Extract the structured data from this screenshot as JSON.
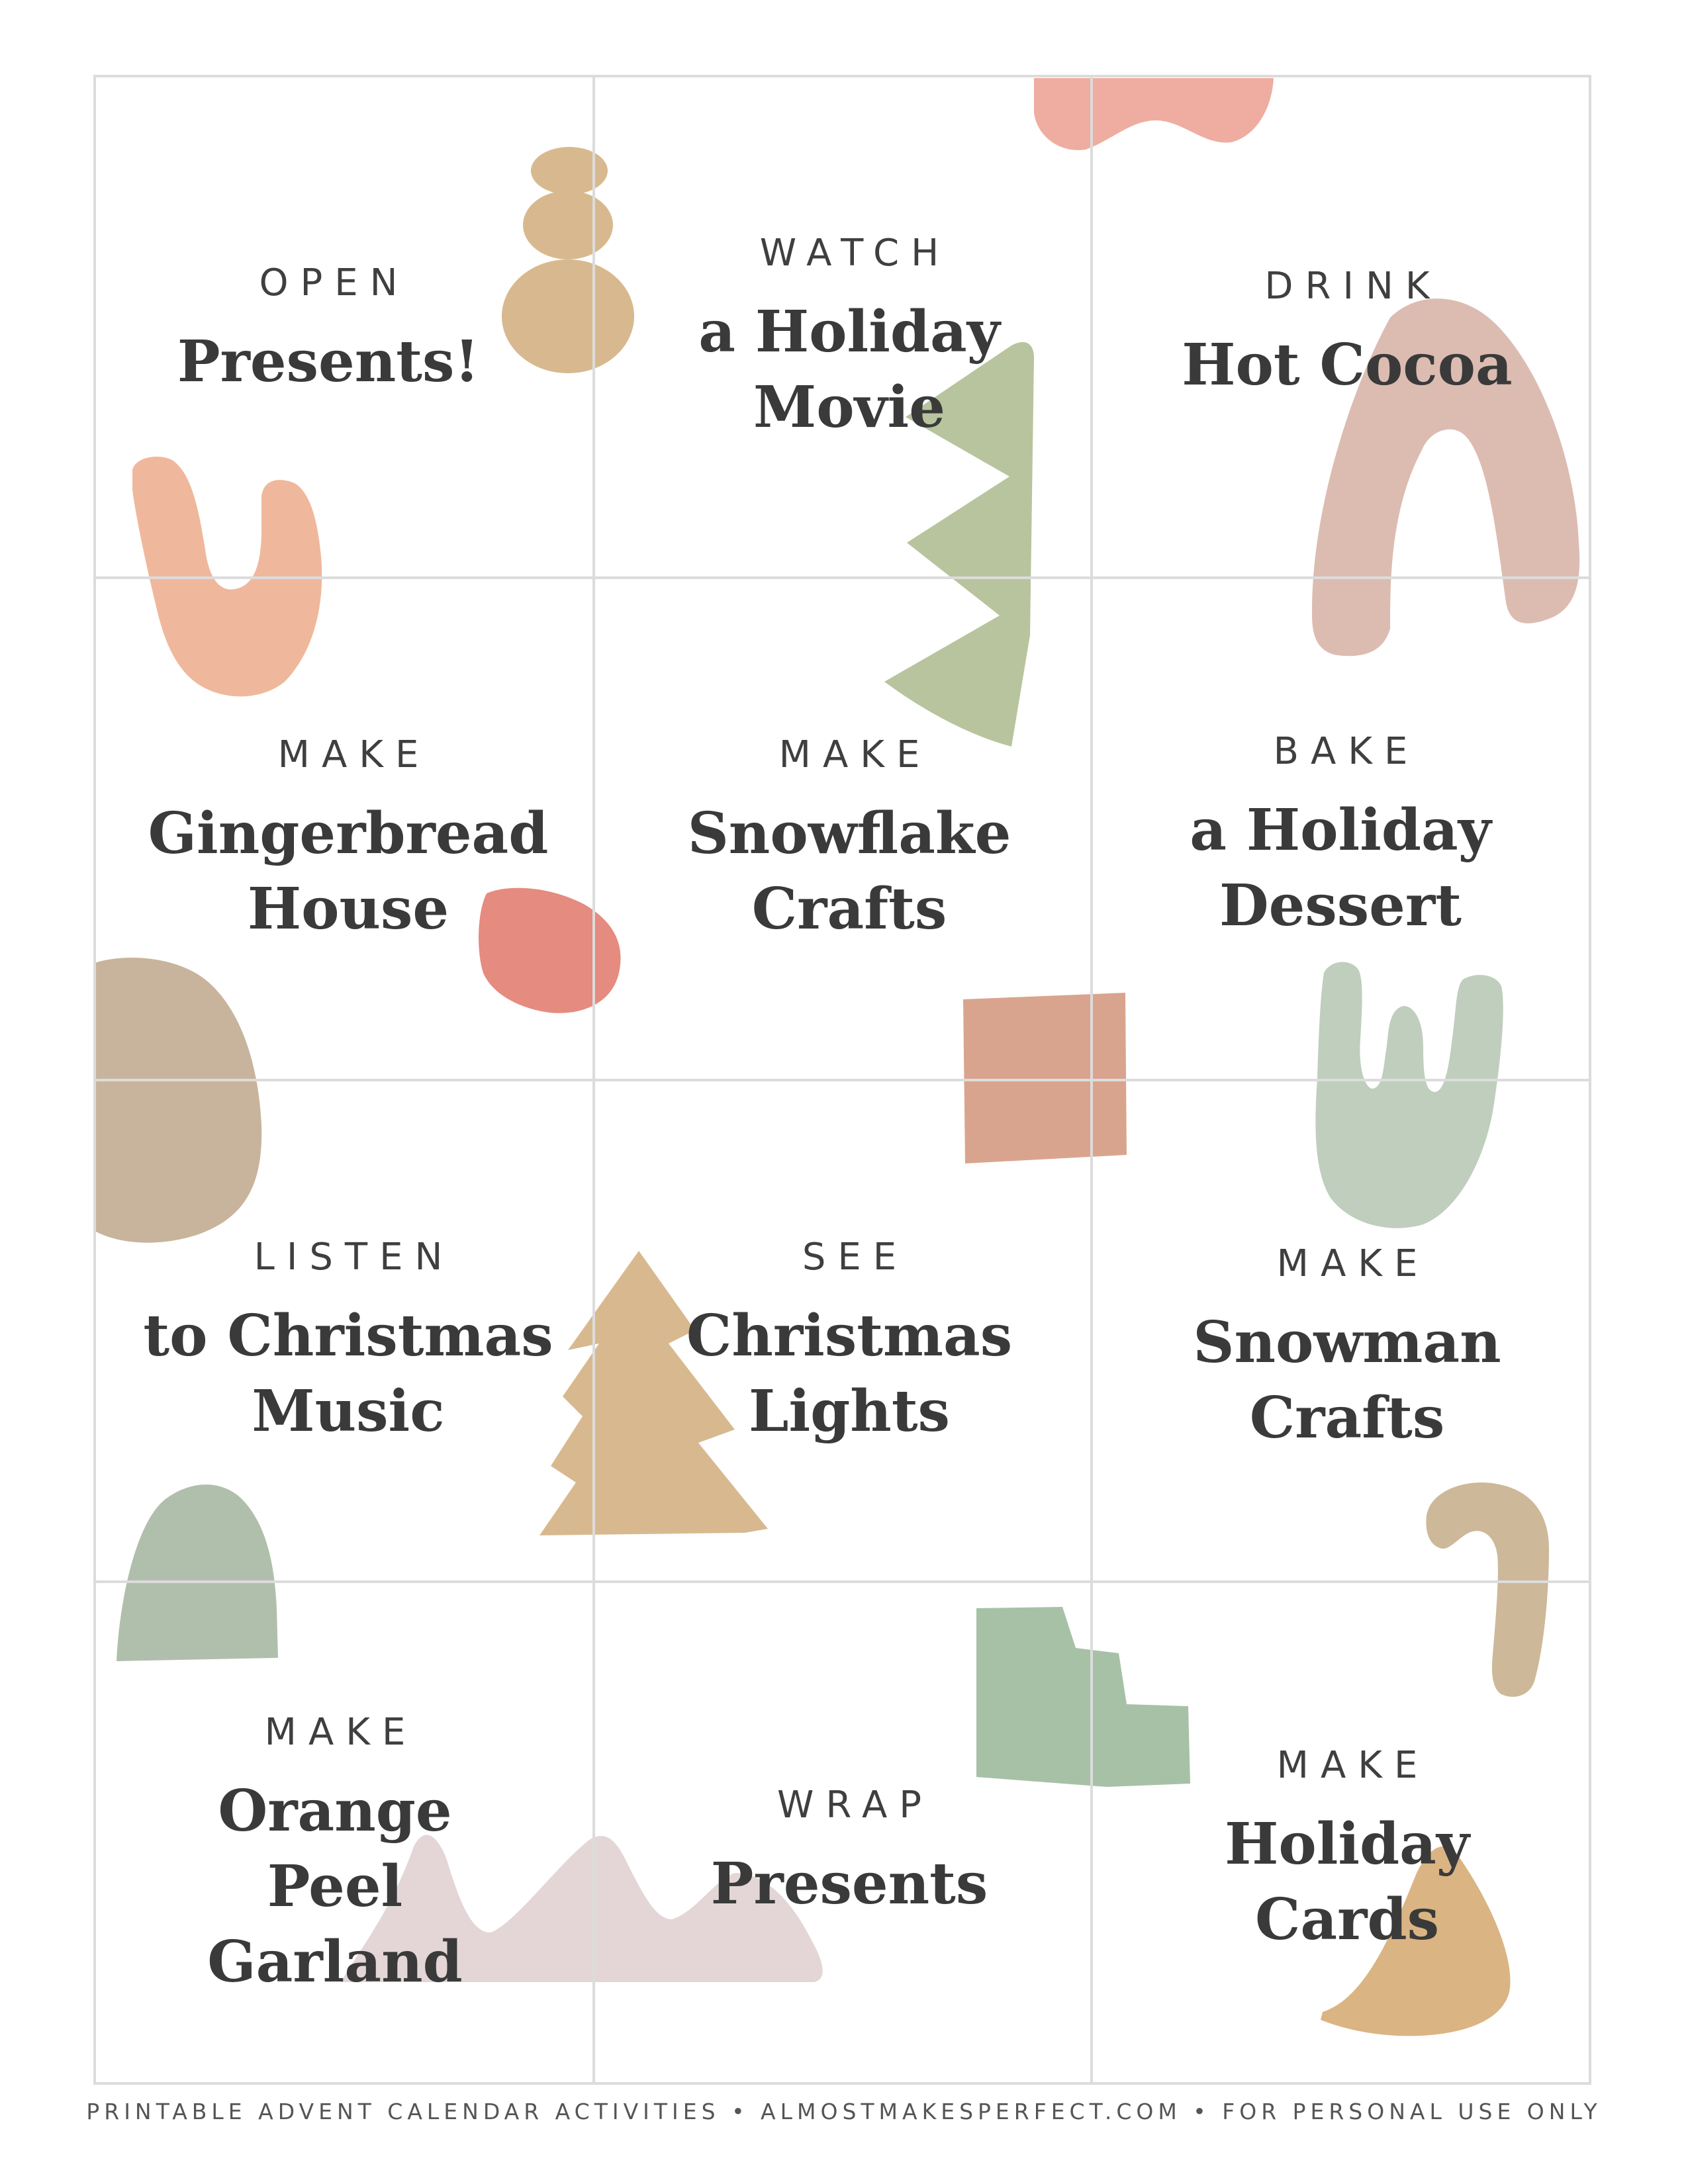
{
  "activities": [
    {
      "verb": "OPEN",
      "lines": [
        "Presents!"
      ]
    },
    {
      "verb": "WATCH",
      "lines": [
        "a Holiday",
        "Movie"
      ]
    },
    {
      "verb": "DRINK",
      "lines": [
        "Hot Cocoa"
      ]
    },
    {
      "verb": "MAKE",
      "lines": [
        "Gingerbread",
        "House"
      ]
    },
    {
      "verb": "MAKE",
      "lines": [
        "Snowflake",
        "Crafts"
      ]
    },
    {
      "verb": "BAKE",
      "lines": [
        "a Holiday",
        "Dessert"
      ]
    },
    {
      "verb": "LISTEN",
      "lines": [
        "to Christmas",
        "Music"
      ]
    },
    {
      "verb": "SEE",
      "lines": [
        "Christmas",
        "Lights"
      ]
    },
    {
      "verb": "MAKE",
      "lines": [
        "Snowman",
        "Crafts"
      ]
    },
    {
      "verb": "MAKE",
      "lines": [
        "Orange",
        "Peel",
        "Garland"
      ]
    },
    {
      "verb": "WRAP",
      "lines": [
        "Presents"
      ]
    },
    {
      "verb": "MAKE",
      "lines": [
        "Holiday",
        "Cards"
      ]
    }
  ],
  "footer": {
    "text": "PRINTABLE ADVENT CALENDAR ACTIVITIES • ALMOSTMAKESPERFECT.COM • FOR PERSONAL USE ONLY"
  },
  "colors": {
    "text": "#3a3a3a",
    "grid": "#dcdcdc",
    "pink": "#eeada0",
    "tan": "#d8b98f",
    "sage": "#b8c49e",
    "mauve": "#dcbcb1",
    "peach": "#efb89c",
    "coral": "#e58b80",
    "taupe": "#c8b49c",
    "terracotta": "#d9a48e",
    "mint": "#bfcebd",
    "mustard": "#dbb483",
    "green": "#a7c1a7",
    "blush": "#e4d6d6",
    "grey_green": "#b0bfab"
  }
}
